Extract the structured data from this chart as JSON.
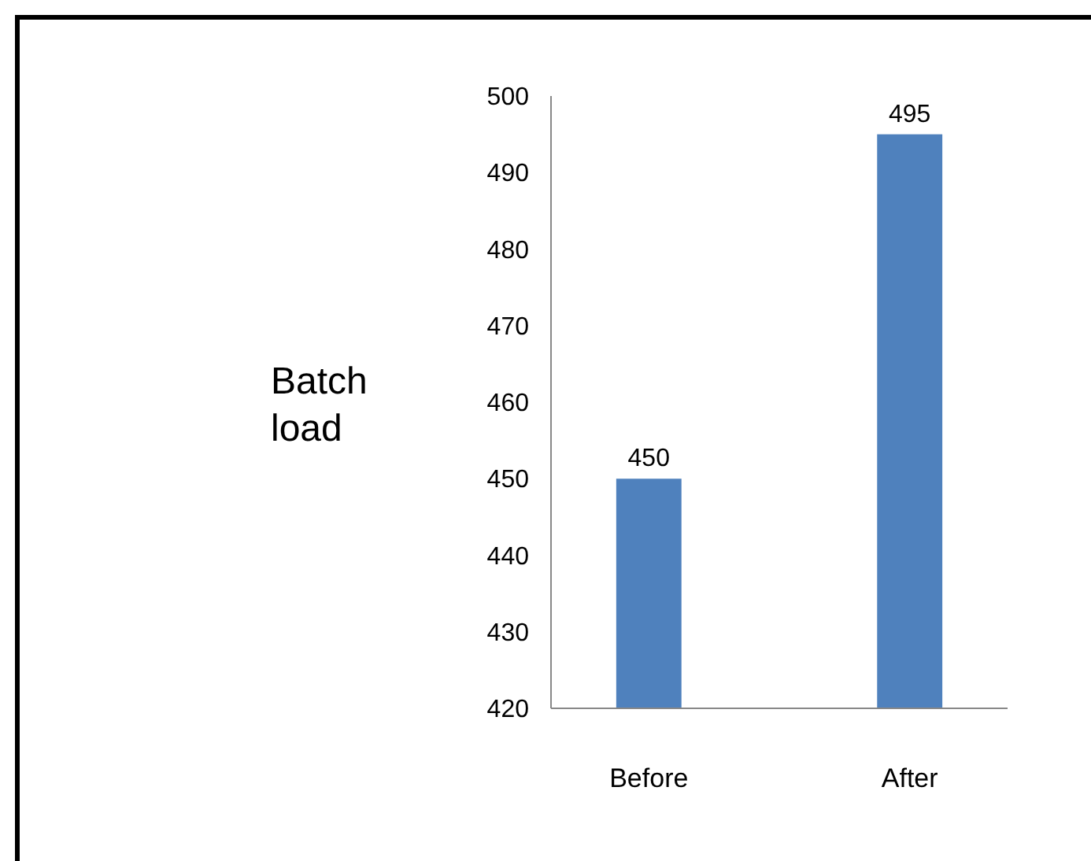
{
  "chart_data": {
    "type": "bar",
    "ylabel": "Batch load",
    "categories": [
      "Before",
      "After"
    ],
    "values": [
      450,
      495
    ],
    "color": "#4f81bd",
    "ylim": [
      420,
      500
    ],
    "yticks": [
      420,
      430,
      440,
      450,
      460,
      470,
      480,
      490,
      500
    ],
    "data_labels": true,
    "grid": false
  }
}
